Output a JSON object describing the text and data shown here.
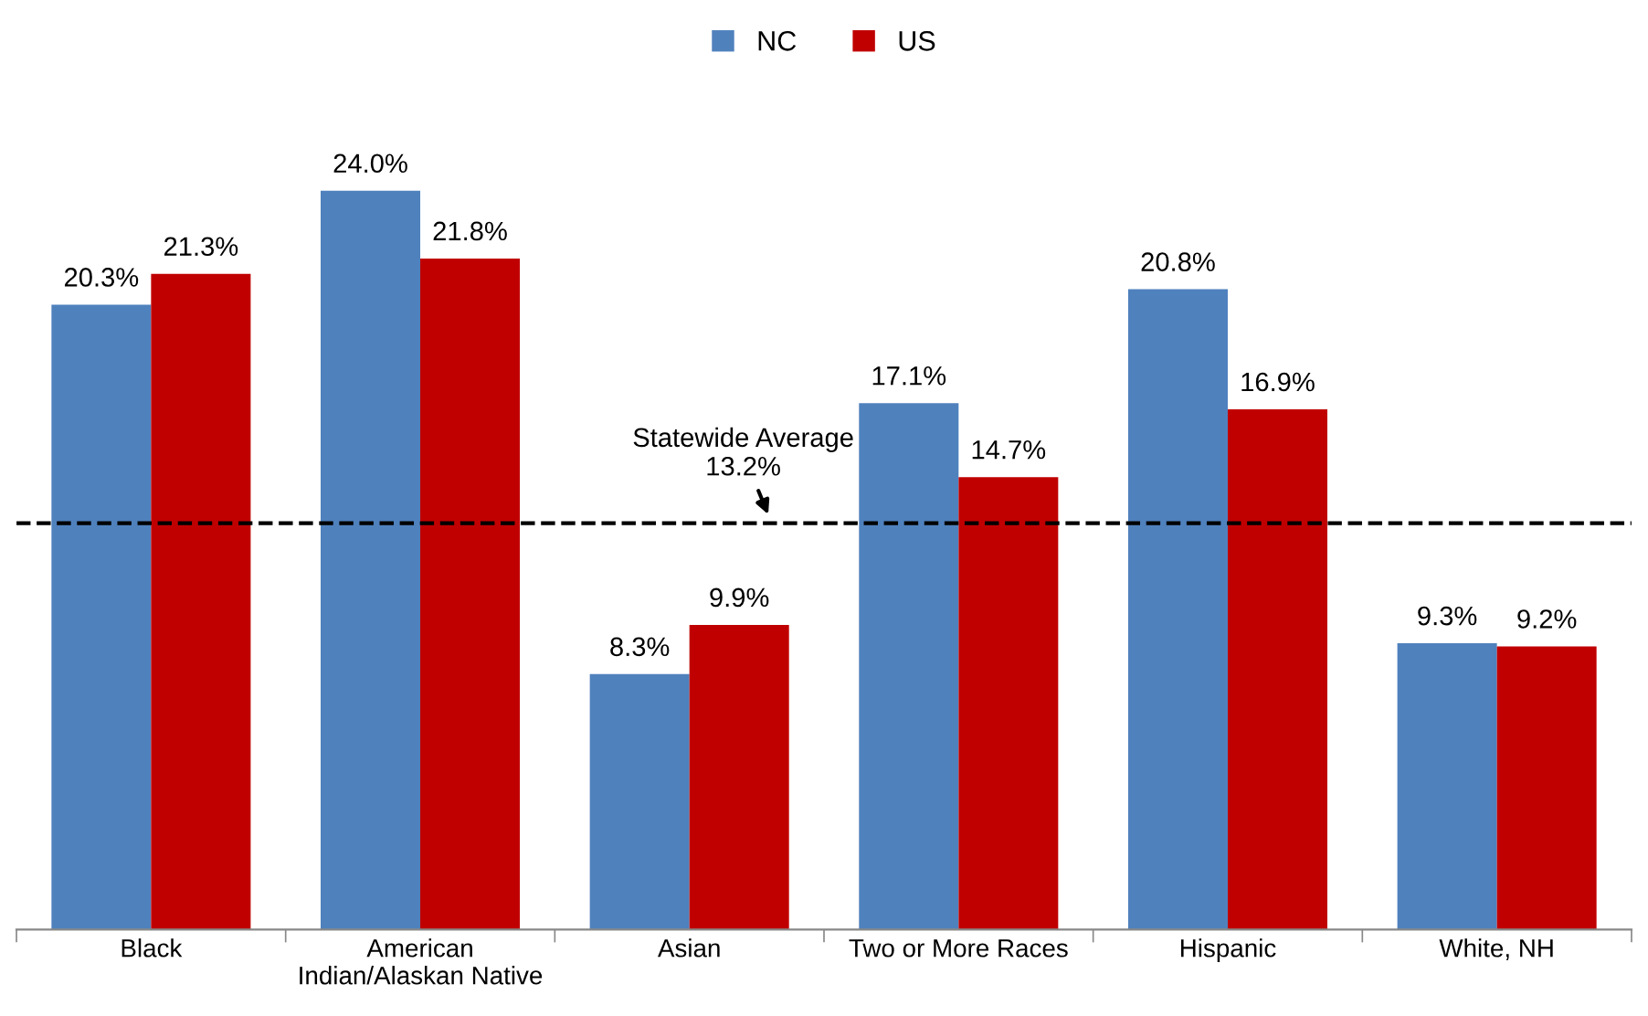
{
  "chart_data": {
    "type": "bar",
    "categories": [
      "Black",
      "American\nIndian/Alaskan Native",
      "Asian",
      "Two or More Races",
      "Hispanic",
      "White, NH"
    ],
    "series": [
      {
        "name": "NC",
        "color": "#4f81bd",
        "values": [
          20.3,
          24.0,
          8.3,
          17.1,
          20.8,
          9.3
        ],
        "value_labels": [
          "20.3%",
          "24.0%",
          "8.3%",
          "17.1%",
          "20.8%",
          "9.3%"
        ]
      },
      {
        "name": "US",
        "color": "#c00000",
        "values": [
          21.3,
          21.8,
          9.9,
          14.7,
          16.9,
          9.2
        ],
        "value_labels": [
          "21.3%",
          "21.8%",
          "9.9%",
          "14.7%",
          "16.9%",
          "9.2%"
        ]
      }
    ],
    "ref_lines": [
      {
        "axis": "y",
        "value": 13.2,
        "label": "Statewide Average\n13.2%",
        "color": "#000000",
        "line_style": "dashed"
      }
    ],
    "legend": "top",
    "grid": false,
    "tick_labels": "x"
  }
}
